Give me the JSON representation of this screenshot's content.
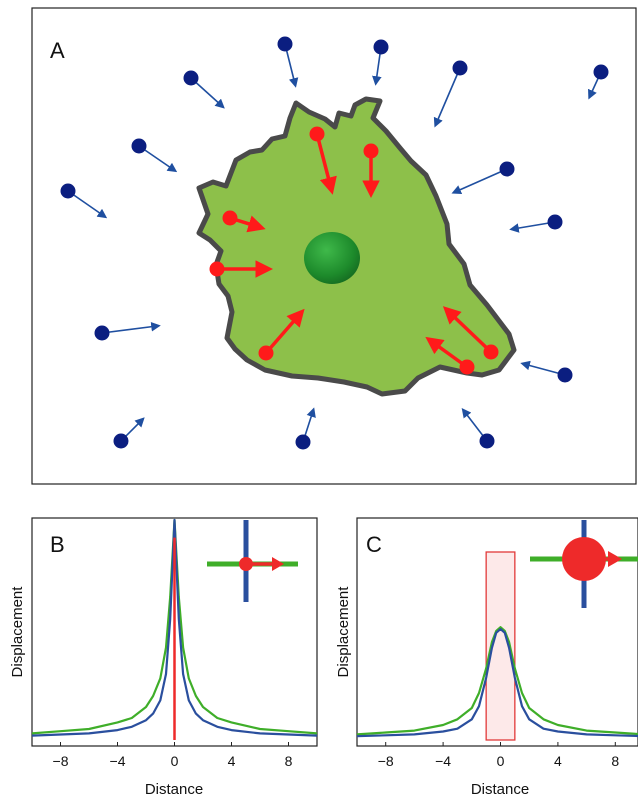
{
  "figure": {
    "panel_a": {
      "letter": "A",
      "colors": {
        "cell_fill": "#8dc04a",
        "cell_outline": "#4a4a4a",
        "nucleus": "#1f8a2e",
        "bead_inside": "#ff1a1a",
        "bead_outside": "#0b1e80",
        "arrow_outside": "#1f4fa0"
      }
    },
    "panel_b": {
      "letter": "B",
      "xlabel": "Distance",
      "ylabel": "Displacement",
      "tick_labels": [
        "−8",
        "−4",
        "0",
        "4",
        "8"
      ],
      "inset": {
        "description_icon": "small-bead-cross-icon"
      }
    },
    "panel_c": {
      "letter": "C",
      "xlabel": "Distance",
      "ylabel": "Displacement",
      "tick_labels": [
        "−8",
        "−4",
        "0",
        "4",
        "8"
      ],
      "inset": {
        "description_icon": "large-bead-cross-icon"
      }
    },
    "colors": {
      "green": "#3fae29",
      "blue": "#2a4f9e",
      "red": "#ee2a2a",
      "rect_fill": "#fde9e9",
      "rect_stroke": "#e23a3a"
    }
  },
  "chart_data": [
    {
      "type": "line",
      "panel": "B",
      "xlabel": "Distance",
      "ylabel": "Displacement",
      "xlim": [
        -10,
        10
      ],
      "xticks": [
        -8,
        -4,
        0,
        4,
        8
      ],
      "series": [
        {
          "color": "green",
          "x": [
            -10,
            -8,
            -6,
            -4,
            -3,
            -2,
            -1.5,
            -1,
            -0.6,
            -0.3,
            0,
            0.3,
            0.6,
            1,
            1.5,
            2,
            3,
            4,
            6,
            8,
            10
          ],
          "y": [
            0.03,
            0.04,
            0.05,
            0.08,
            0.1,
            0.15,
            0.2,
            0.28,
            0.42,
            0.65,
            1.0,
            0.65,
            0.42,
            0.28,
            0.2,
            0.15,
            0.1,
            0.08,
            0.05,
            0.04,
            0.03
          ]
        },
        {
          "color": "blue",
          "x": [
            -10,
            -8,
            -6,
            -4,
            -3,
            -2,
            -1.5,
            -1,
            -0.6,
            -0.3,
            0,
            0.3,
            0.6,
            1,
            1.5,
            2,
            3,
            4,
            6,
            8,
            10
          ],
          "y": [
            0.02,
            0.025,
            0.03,
            0.045,
            0.06,
            0.09,
            0.12,
            0.18,
            0.3,
            0.55,
            1.0,
            0.55,
            0.3,
            0.18,
            0.12,
            0.09,
            0.06,
            0.045,
            0.03,
            0.025,
            0.02
          ]
        },
        {
          "color": "red",
          "x": [
            -10,
            -0.05,
            0,
            0.05,
            10
          ],
          "y": [
            0,
            0,
            0.92,
            0,
            0
          ]
        }
      ]
    },
    {
      "type": "line",
      "panel": "C",
      "xlabel": "Distance",
      "ylabel": "Displacement",
      "xlim": [
        -10,
        10
      ],
      "xticks": [
        -8,
        -4,
        0,
        4,
        8
      ],
      "highlight_rect": {
        "x": [
          -1,
          1
        ],
        "y": [
          0,
          1.0
        ]
      },
      "series": [
        {
          "color": "green",
          "x": [
            -10,
            -8,
            -6,
            -4,
            -3,
            -2,
            -1.5,
            -1,
            -0.6,
            -0.3,
            0,
            0.3,
            0.6,
            1,
            1.5,
            2,
            3,
            4,
            6,
            8,
            10
          ],
          "y": [
            0.03,
            0.04,
            0.05,
            0.08,
            0.11,
            0.17,
            0.25,
            0.38,
            0.52,
            0.58,
            0.6,
            0.58,
            0.52,
            0.38,
            0.25,
            0.17,
            0.11,
            0.08,
            0.05,
            0.04,
            0.03
          ]
        },
        {
          "color": "blue",
          "x": [
            -10,
            -8,
            -6,
            -4,
            -3,
            -2,
            -1.5,
            -1,
            -0.6,
            -0.3,
            0,
            0.3,
            0.6,
            1,
            1.5,
            2,
            3,
            4,
            6,
            8,
            10
          ],
          "y": [
            0.02,
            0.025,
            0.03,
            0.045,
            0.06,
            0.11,
            0.18,
            0.33,
            0.49,
            0.57,
            0.59,
            0.57,
            0.49,
            0.33,
            0.18,
            0.11,
            0.06,
            0.045,
            0.03,
            0.025,
            0.02
          ]
        }
      ]
    }
  ]
}
